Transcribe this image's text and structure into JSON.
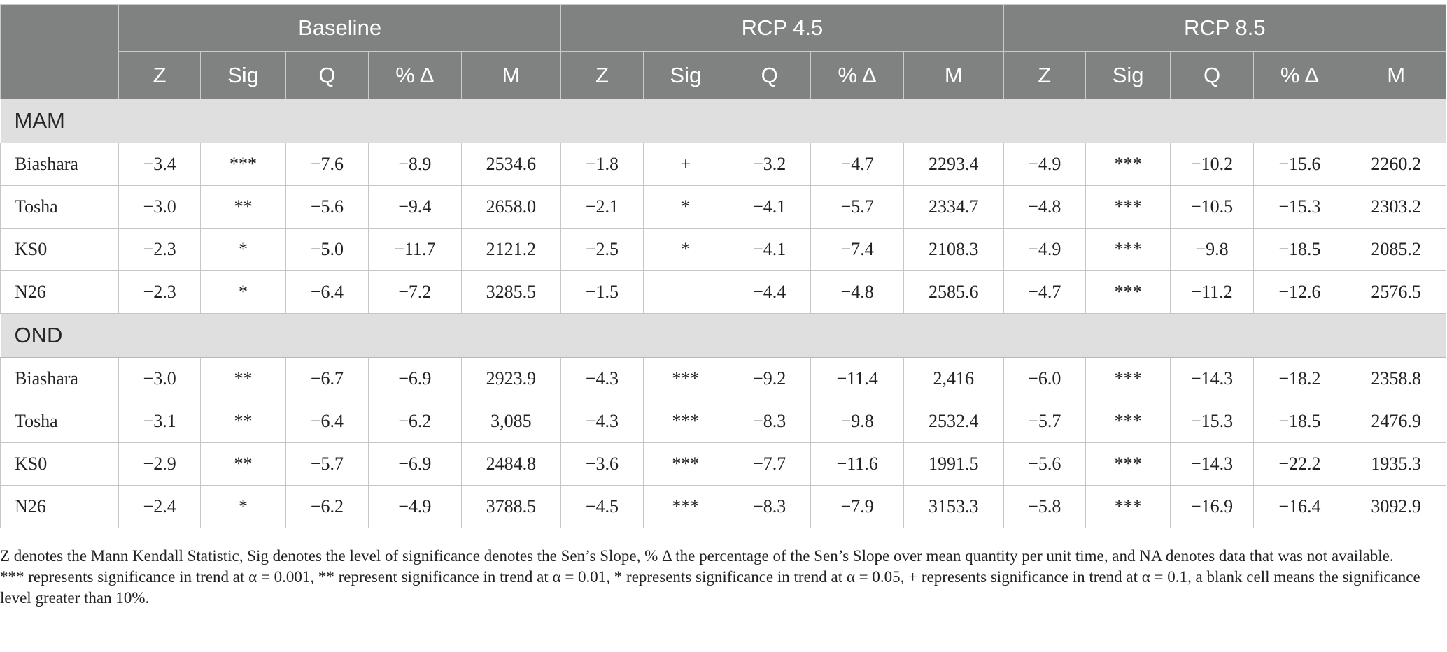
{
  "table": {
    "groups": [
      "Baseline",
      "RCP 4.5",
      "RCP 8.5"
    ],
    "columns": [
      "Z",
      "Sig",
      "Q",
      "% Δ",
      "M"
    ],
    "sections": [
      {
        "name": "MAM",
        "rows": [
          {
            "label": "Biashara",
            "values": [
              "−3.4",
              "***",
              "−7.6",
              "−8.9",
              "2534.6",
              "−1.8",
              "+",
              "−3.2",
              "−4.7",
              "2293.4",
              "−4.9",
              "***",
              "−10.2",
              "−15.6",
              "2260.2"
            ]
          },
          {
            "label": "Tosha",
            "values": [
              "−3.0",
              "**",
              "−5.6",
              "−9.4",
              "2658.0",
              "−2.1",
              "*",
              "−4.1",
              "−5.7",
              "2334.7",
              "−4.8",
              "***",
              "−10.5",
              "−15.3",
              "2303.2"
            ]
          },
          {
            "label": "KS0",
            "values": [
              "−2.3",
              "*",
              "−5.0",
              "−11.7",
              "2121.2",
              "−2.5",
              "*",
              "−4.1",
              "−7.4",
              "2108.3",
              "−4.9",
              "***",
              "−9.8",
              "−18.5",
              "2085.2"
            ]
          },
          {
            "label": "N26",
            "values": [
              "−2.3",
              "*",
              "−6.4",
              "−7.2",
              "3285.5",
              "−1.5",
              "",
              "−4.4",
              "−4.8",
              "2585.6",
              "−4.7",
              "***",
              "−11.2",
              "−12.6",
              "2576.5"
            ]
          }
        ]
      },
      {
        "name": "OND",
        "rows": [
          {
            "label": "Biashara",
            "values": [
              "−3.0",
              "**",
              "−6.7",
              "−6.9",
              "2923.9",
              "−4.3",
              "***",
              "−9.2",
              "−11.4",
              "2,416",
              "−6.0",
              "***",
              "−14.3",
              "−18.2",
              "2358.8"
            ]
          },
          {
            "label": "Tosha",
            "values": [
              "−3.1",
              "**",
              "−6.4",
              "−6.2",
              "3,085",
              "−4.3",
              "***",
              "−8.3",
              "−9.8",
              "2532.4",
              "−5.7",
              "***",
              "−15.3",
              "−18.5",
              "2476.9"
            ]
          },
          {
            "label": "KS0",
            "values": [
              "−2.9",
              "**",
              "−5.7",
              "−6.9",
              "2484.8",
              "−3.6",
              "***",
              "−7.7",
              "−11.6",
              "1991.5",
              "−5.6",
              "***",
              "−14.3",
              "−22.2",
              "1935.3"
            ]
          },
          {
            "label": "N26",
            "values": [
              "−2.4",
              "*",
              "−6.2",
              "−4.9",
              "3788.5",
              "−4.5",
              "***",
              "−8.3",
              "−7.9",
              "3153.3",
              "−5.8",
              "***",
              "−16.9",
              "−16.4",
              "3092.9"
            ]
          }
        ]
      }
    ]
  },
  "notes": [
    "Z denotes the Mann Kendall Statistic, Sig denotes the level of significance denotes the Sen’s Slope, % Δ the percentage of the Sen’s Slope over mean quantity per unit time, and NA denotes data that was not available.",
    "*** represents significance in trend at α = 0.001, ** represent significance in trend at α = 0.01, * represents significance in trend at α = 0.05, + represents significance in trend at α = 0.1, a blank cell means the significance level greater than 10%."
  ]
}
